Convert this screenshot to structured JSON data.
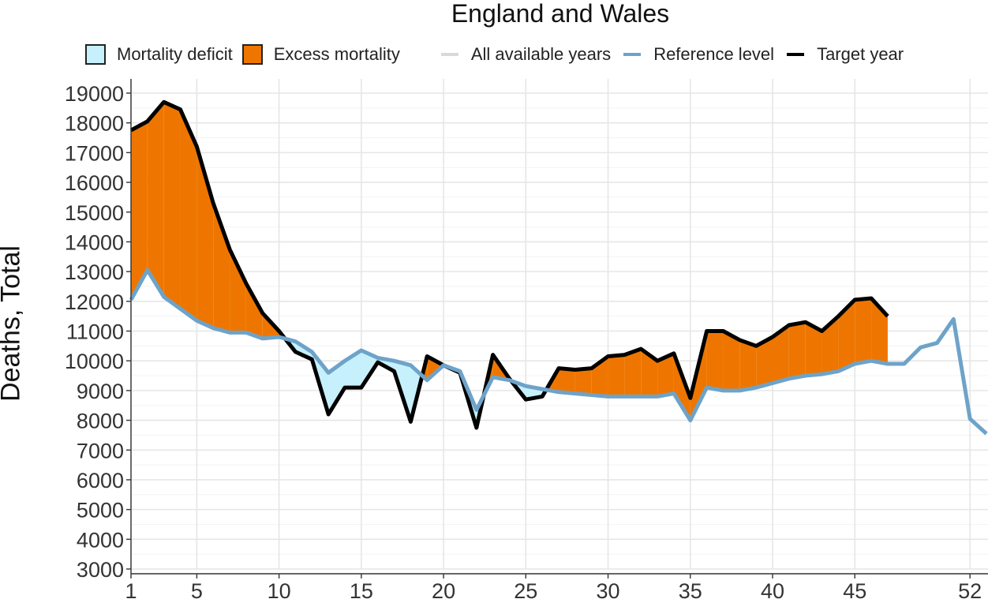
{
  "chart_data": {
    "type": "line",
    "title": "England and Wales",
    "xlabel": "",
    "ylabel": "Deaths, Total",
    "xlim": [
      1,
      53
    ],
    "ylim": [
      3000,
      19200
    ],
    "x_ticks": [
      1,
      5,
      10,
      15,
      20,
      25,
      30,
      35,
      40,
      45,
      52
    ],
    "y_ticks": [
      3000,
      4000,
      5000,
      6000,
      7000,
      8000,
      9000,
      10000,
      11000,
      12000,
      13000,
      14000,
      15000,
      16000,
      17000,
      18000,
      19000
    ],
    "legend": [
      {
        "label": "Mortality deficit",
        "kind": "fill",
        "color": "#c6f0fb"
      },
      {
        "label": "Excess mortality",
        "kind": "fill",
        "color": "#ee7600"
      },
      {
        "label": "All available years",
        "kind": "line",
        "color": "#d9d9d9"
      },
      {
        "label": "Reference level",
        "kind": "line",
        "color": "#6ea3c9"
      },
      {
        "label": "Target year",
        "kind": "line",
        "color": "#000000"
      }
    ],
    "series": [
      {
        "name": "Reference level",
        "color": "#6ea3c9",
        "x": [
          1,
          2,
          3,
          4,
          5,
          6,
          7,
          8,
          9,
          10,
          11,
          12,
          13,
          14,
          15,
          16,
          17,
          18,
          19,
          20,
          21,
          22,
          23,
          24,
          25,
          26,
          27,
          28,
          29,
          30,
          31,
          32,
          33,
          34,
          35,
          36,
          37,
          38,
          39,
          40,
          41,
          42,
          43,
          44,
          45,
          46,
          47,
          48,
          49,
          50,
          51,
          52,
          53
        ],
        "values": [
          12050,
          13050,
          12150,
          11750,
          11350,
          11100,
          10950,
          10950,
          10750,
          10800,
          10650,
          10300,
          9600,
          10000,
          10350,
          10100,
          10000,
          9850,
          9350,
          9850,
          9650,
          8350,
          9450,
          9350,
          9150,
          9050,
          8950,
          8900,
          8850,
          8800,
          8800,
          8800,
          8800,
          8900,
          8000,
          9100,
          9000,
          9000,
          9100,
          9250,
          9400,
          9500,
          9550,
          9650,
          9900,
          10000,
          9900,
          9900,
          10450,
          10600,
          11400,
          8050,
          7550
        ]
      },
      {
        "name": "Target year",
        "color": "#000000",
        "x": [
          1,
          2,
          3,
          4,
          5,
          6,
          7,
          8,
          9,
          10,
          11,
          12,
          13,
          14,
          15,
          16,
          17,
          18,
          19,
          20,
          21,
          22,
          23,
          24,
          25,
          26,
          27,
          28,
          29,
          30,
          31,
          32,
          33,
          34,
          35,
          36,
          37,
          38,
          39,
          40,
          41,
          42,
          43,
          44,
          45,
          46,
          47
        ],
        "values": [
          17750,
          18050,
          18700,
          18450,
          17200,
          15300,
          13750,
          12600,
          11600,
          11000,
          10300,
          10050,
          8200,
          9100,
          9100,
          9950,
          9650,
          7950,
          10150,
          9850,
          9600,
          7750,
          10200,
          9400,
          8700,
          8800,
          9750,
          9700,
          9750,
          10150,
          10200,
          10400,
          10000,
          10250,
          8750,
          11000,
          11000,
          10700,
          10500,
          10800,
          11200,
          11300,
          11000,
          11500,
          12050,
          12100,
          11500
        ]
      }
    ]
  }
}
